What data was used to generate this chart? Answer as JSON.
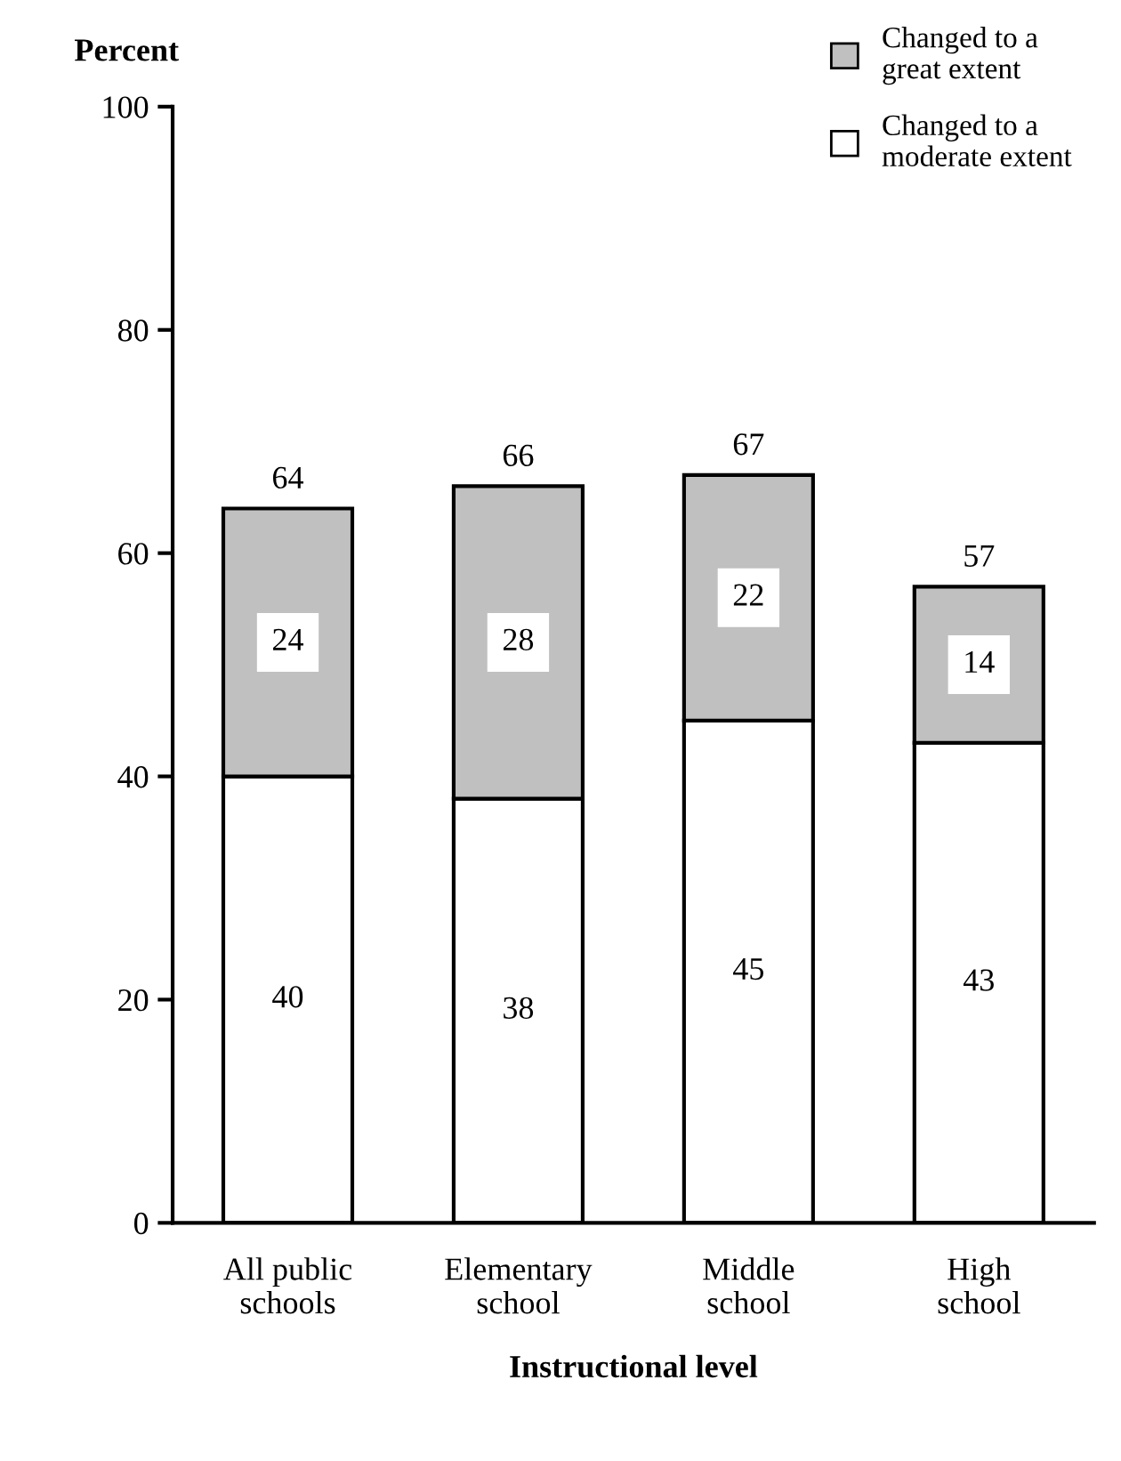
{
  "chart_data": {
    "type": "bar",
    "stacked": true,
    "xlabel": "Instructional level",
    "ylabel": "Percent",
    "categories": [
      "All public\nschools",
      "Elementary\nschool",
      "Middle\nschool",
      "High\nschool"
    ],
    "series": [
      {
        "name": "Changed to a\nmoderate extent",
        "color": "#ffffff",
        "values": [
          40,
          38,
          45,
          43
        ]
      },
      {
        "name": "Changed to a\ngreat extent",
        "color": "#c0c0c0",
        "values": [
          24,
          28,
          22,
          14
        ]
      }
    ],
    "totals": [
      "64",
      "66",
      "67",
      "57"
    ],
    "data_labels": true,
    "ylim": [
      0,
      100
    ],
    "yticks": [
      0,
      20,
      40,
      60,
      80,
      100
    ],
    "grid": false,
    "legend": "top right"
  }
}
